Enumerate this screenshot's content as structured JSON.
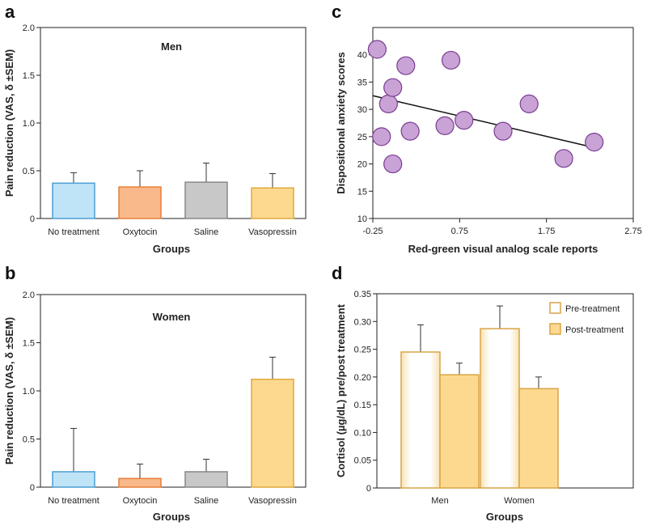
{
  "panels": {
    "a": "a",
    "b": "b",
    "c": "c",
    "d": "d"
  },
  "chart_data": [
    {
      "id": "a",
      "type": "bar",
      "title": "Men",
      "categories": [
        "No treatment",
        "Oxytocin",
        "Saline",
        "Vasopressin"
      ],
      "values": [
        0.37,
        0.33,
        0.38,
        0.32
      ],
      "errors": [
        0.11,
        0.17,
        0.2,
        0.15
      ],
      "colors": [
        "#bfe3f7",
        "#f9b98a",
        "#c8c8c8",
        "#fcd98f"
      ],
      "edge_colors": [
        "#4a9fd4",
        "#e67e3a",
        "#888888",
        "#e0a93a"
      ],
      "xlabel": "Groups",
      "ylabel": "Pain reduction (VAS, δ ±SEM)",
      "ylim": [
        0,
        2.0
      ],
      "yticks": [
        "0",
        "0.5",
        "1.0",
        "1.5",
        "2.0"
      ]
    },
    {
      "id": "b",
      "type": "bar",
      "title": "Women",
      "categories": [
        "No treatment",
        "Oxytocin",
        "Saline",
        "Vasopressin"
      ],
      "values": [
        0.16,
        0.09,
        0.16,
        1.12
      ],
      "errors": [
        0.45,
        0.15,
        0.13,
        0.23
      ],
      "colors": [
        "#bfe3f7",
        "#f9b98a",
        "#c8c8c8",
        "#fcd98f"
      ],
      "edge_colors": [
        "#4a9fd4",
        "#e67e3a",
        "#888888",
        "#e0a93a"
      ],
      "xlabel": "Groups",
      "ylabel": "Pain reduction (VAS, δ ±SEM)",
      "ylim": [
        0,
        2.0
      ],
      "yticks": [
        "0",
        "0.5",
        "1.0",
        "1.5",
        "2.0"
      ]
    },
    {
      "id": "c",
      "type": "scatter",
      "xlabel": "Red-green visual analog scale reports",
      "ylabel": "Dispositional anxiety scores",
      "xlim": [
        -0.25,
        2.75
      ],
      "ylim": [
        10,
        45
      ],
      "xticks": [
        "-0.25",
        "0.75",
        "1.75",
        "2.75"
      ],
      "yticks": [
        "10",
        "15",
        "20",
        "25",
        "30",
        "35",
        "40"
      ],
      "points": [
        {
          "x": -0.2,
          "y": 41
        },
        {
          "x": -0.15,
          "y": 25
        },
        {
          "x": -0.07,
          "y": 31
        },
        {
          "x": -0.02,
          "y": 34
        },
        {
          "x": -0.02,
          "y": 20
        },
        {
          "x": 0.13,
          "y": 38
        },
        {
          "x": 0.18,
          "y": 26
        },
        {
          "x": 0.58,
          "y": 27
        },
        {
          "x": 0.65,
          "y": 39
        },
        {
          "x": 0.8,
          "y": 28
        },
        {
          "x": 1.25,
          "y": 26
        },
        {
          "x": 1.55,
          "y": 31
        },
        {
          "x": 1.95,
          "y": 21
        },
        {
          "x": 2.3,
          "y": 24
        }
      ],
      "trendline": {
        "x": [
          -0.25,
          2.3
        ],
        "y": [
          32.5,
          23
        ]
      },
      "point_color": "#c9a2d6",
      "point_edge": "#7a3d91"
    },
    {
      "id": "d",
      "type": "bar",
      "categories": [
        "Men",
        "Women"
      ],
      "series": [
        {
          "name": "Pre-treatment",
          "values": [
            0.245,
            0.287
          ],
          "errors": [
            0.049,
            0.041
          ],
          "color": "#ffffff",
          "edge": "#d9a446"
        },
        {
          "name": "Post-treatment",
          "values": [
            0.204,
            0.179
          ],
          "errors": [
            0.021,
            0.021
          ],
          "color": "#fcd98f",
          "edge": "#d9a446"
        }
      ],
      "xlabel": "Groups",
      "ylabel": "Cortisol (µg/dL) pre/post treatment",
      "ylim": [
        0,
        0.35
      ],
      "yticks": [
        "0",
        "0.05",
        "0.10",
        "0.15",
        "0.20",
        "0.25",
        "0.30",
        "0.35"
      ],
      "legend_position": "top-right"
    }
  ]
}
